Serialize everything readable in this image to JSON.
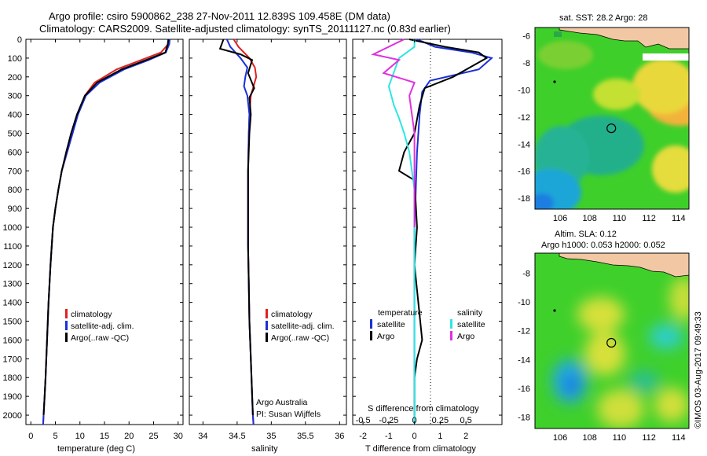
{
  "header": {
    "line1": "Argo profile: csiro 5900862_238 27-Nov-2011 12.839S 109.458E (DM data)",
    "line2": "Climatology: CARS2009. Satellite-adjusted climatology: synTS_20111127.nc (0.83d earlier)"
  },
  "credit": "©IMOS 03-Aug-2017 09:49:33",
  "colors": {
    "climatology": "#e02020",
    "satellite": "#1a2fd8",
    "argo": "#000000",
    "sal_satellite": "#2ee6e0",
    "sal_argo": "#e030e0",
    "land": "#f2c8a4"
  },
  "chart_data": [
    {
      "type": "line",
      "panel": "temperature",
      "xlabel": "temperature (deg C)",
      "xlim": [
        -1,
        31
      ],
      "xticks": [
        0,
        5,
        10,
        15,
        20,
        25,
        30
      ],
      "ylim": [
        0,
        2050
      ],
      "yticks": [
        0,
        100,
        200,
        300,
        400,
        500,
        600,
        700,
        800,
        900,
        1000,
        1100,
        1200,
        1300,
        1400,
        1500,
        1600,
        1700,
        1800,
        1900,
        2000
      ],
      "legend": [
        "climatology",
        "satellite-adj. clim.",
        "Argo(..raw -QC)"
      ],
      "series": [
        {
          "name": "climatology",
          "color": "#e02020",
          "x": [
            28.2,
            28.0,
            26.5,
            22.5,
            17.5,
            13.0,
            11.0,
            9.5,
            8.5,
            7.4,
            6.3,
            5.6,
            5.0,
            4.5,
            4.0,
            3.6,
            3.3,
            3.0,
            2.8,
            2.6,
            2.5
          ],
          "y": [
            0,
            25,
            70,
            110,
            160,
            230,
            300,
            400,
            500,
            600,
            700,
            800,
            900,
            1000,
            1200,
            1400,
            1600,
            1800,
            1900,
            2000,
            2050
          ]
        },
        {
          "name": "satellite-adj. clim.",
          "color": "#1a2fd8",
          "x": [
            28.3,
            28.2,
            27.5,
            24.0,
            19.0,
            14.0,
            11.2,
            9.6,
            8.5,
            7.4,
            6.3,
            5.6,
            5.0,
            4.5,
            4.0,
            3.6,
            3.3,
            3.0,
            2.8,
            2.6,
            2.5
          ],
          "y": [
            0,
            25,
            70,
            110,
            160,
            230,
            300,
            400,
            500,
            600,
            700,
            800,
            900,
            1000,
            1200,
            1400,
            1600,
            1800,
            1900,
            2000,
            2050
          ]
        },
        {
          "name": "Argo(..raw -QC)",
          "color": "#000000",
          "x": [
            28.0,
            27.9,
            27.4,
            23.5,
            18.5,
            13.5,
            11.0,
            9.4,
            8.2,
            7.2,
            6.3,
            5.6,
            5.0,
            4.5,
            4.0,
            3.6,
            3.3,
            3.0,
            2.8,
            2.6
          ],
          "y": [
            0,
            25,
            70,
            110,
            160,
            230,
            300,
            400,
            500,
            600,
            700,
            800,
            900,
            1000,
            1200,
            1400,
            1600,
            1800,
            1900,
            2000
          ]
        }
      ]
    },
    {
      "type": "line",
      "panel": "salinity",
      "xlabel": "salinity",
      "xlim": [
        33.8,
        36.1
      ],
      "xticks": [
        34,
        34.5,
        35,
        35.5,
        36
      ],
      "xticklabels": [
        "34",
        "34.5",
        "35",
        "35.5",
        "36"
      ],
      "ylim": [
        0,
        2050
      ],
      "legend": [
        "climatology",
        "satellite-adj. clim.",
        "Argo(..raw -QC)"
      ],
      "annotation": [
        "Argo Australia",
        "PI: Susan Wijffels"
      ],
      "series": [
        {
          "name": "climatology",
          "color": "#e02020",
          "x": [
            34.45,
            34.52,
            34.68,
            34.76,
            34.78,
            34.74,
            34.7,
            34.68,
            34.67,
            34.66,
            34.66,
            34.66,
            34.67,
            34.68,
            34.7,
            34.72,
            34.73,
            34.74
          ],
          "y": [
            0,
            40,
            100,
            150,
            200,
            250,
            300,
            400,
            500,
            700,
            900,
            1100,
            1300,
            1500,
            1700,
            1900,
            2000,
            2050
          ]
        },
        {
          "name": "satellite-adj. clim.",
          "color": "#1a2fd8",
          "x": [
            34.35,
            34.4,
            34.55,
            34.65,
            34.62,
            34.6,
            34.65,
            34.68,
            34.67,
            34.66,
            34.66,
            34.66,
            34.67,
            34.68,
            34.7,
            34.72,
            34.73,
            34.74
          ],
          "y": [
            0,
            40,
            100,
            150,
            200,
            250,
            300,
            400,
            500,
            700,
            900,
            1100,
            1300,
            1500,
            1700,
            1900,
            2000,
            2050
          ]
        },
        {
          "name": "Argo(..raw -QC)",
          "color": "#000000",
          "x": [
            34.3,
            34.25,
            34.55,
            34.72,
            34.66,
            34.75,
            34.68,
            34.7,
            34.68,
            34.66,
            34.66,
            34.66,
            34.67,
            34.68,
            34.7,
            34.72,
            34.73
          ],
          "y": [
            0,
            50,
            80,
            110,
            180,
            260,
            310,
            400,
            500,
            700,
            900,
            1100,
            1300,
            1500,
            1700,
            1900,
            2000
          ]
        }
      ]
    },
    {
      "type": "line",
      "panel": "difference",
      "xlabel": "T difference from climatology",
      "xlabel2": "S difference from climatology",
      "xlim": [
        -2.4,
        3.4
      ],
      "xticks": [
        -2,
        -1,
        0,
        1,
        2
      ],
      "xticks_s": [
        -0.5,
        -0.25,
        0,
        0.25,
        0.5
      ],
      "xticklabels_s": [
        "-0.5",
        "-0.25",
        "0",
        "0.25",
        "0.5"
      ],
      "ylim": [
        0,
        2050
      ],
      "legend_left_title": "temperature",
      "legend_right_title": "salinity",
      "legend_left": [
        "satellite",
        "Argo"
      ],
      "legend_right": [
        "satellite",
        "Argo"
      ],
      "series": [
        {
          "name": "satellite",
          "group": "temperature",
          "color": "#1a2fd8",
          "x": [
            0.1,
            0.8,
            2.2,
            3.0,
            2.5,
            0.6,
            0.3,
            0.2,
            0.1,
            0.05,
            0.0,
            0.0,
            0.0,
            0.0,
            0.0,
            0.0
          ],
          "y": [
            0,
            40,
            70,
            100,
            160,
            220,
            280,
            400,
            600,
            800,
            1000,
            1200,
            1400,
            1600,
            1800,
            2050
          ]
        },
        {
          "name": "Argo",
          "group": "temperature",
          "color": "#000000",
          "x": [
            -0.2,
            1.2,
            2.5,
            2.8,
            1.5,
            0.4,
            0.2,
            0.0,
            -0.4,
            -0.6,
            0.0,
            0.1,
            0.0,
            0.3,
            0.1,
            0.0,
            0.0
          ],
          "y": [
            0,
            40,
            70,
            100,
            200,
            260,
            350,
            500,
            600,
            700,
            750,
            1000,
            1200,
            1600,
            1700,
            1800,
            2000
          ]
        },
        {
          "name": "satellite",
          "group": "salinity",
          "color": "#2ee6e0",
          "x": [
            0.0,
            0.0,
            -0.15,
            -0.25,
            -0.2,
            -0.15,
            -0.1,
            -0.05,
            0.0,
            0.0,
            0.0
          ],
          "y": [
            0,
            40,
            100,
            250,
            350,
            420,
            500,
            600,
            800,
            1200,
            2050
          ]
        },
        {
          "name": "Argo",
          "group": "salinity",
          "color": "#e030e0",
          "x": [
            -0.1,
            -0.4,
            -0.15,
            -0.3,
            0.0,
            -0.05,
            0.0,
            0.0
          ],
          "y": [
            0,
            80,
            110,
            180,
            230,
            300,
            500,
            1000
          ]
        }
      ]
    },
    {
      "type": "heatmap",
      "panel": "sst-map",
      "title": "sat. SST: 28.2 Argo: 28",
      "xticks": [
        106,
        108,
        110,
        112,
        114
      ],
      "yticks": [
        -6,
        -8,
        -10,
        -12,
        -14,
        -16,
        -18
      ],
      "xlim": [
        104.3,
        114.7
      ],
      "ylim": [
        -18.8,
        -5.4
      ],
      "argo_position": [
        109.458,
        -12.839
      ]
    },
    {
      "type": "heatmap",
      "panel": "sla-map",
      "title": [
        "Altim. SLA: 0.12",
        "Argo h1000: 0.053 h2000: 0.052"
      ],
      "xticks": [
        106,
        108,
        110,
        112,
        114
      ],
      "yticks": [
        -8,
        -10,
        -12,
        -14,
        -16,
        -18
      ],
      "xlim": [
        104.3,
        114.7
      ],
      "ylim": [
        -18.8,
        -6.6
      ],
      "argo_position": [
        109.458,
        -12.839
      ]
    }
  ]
}
